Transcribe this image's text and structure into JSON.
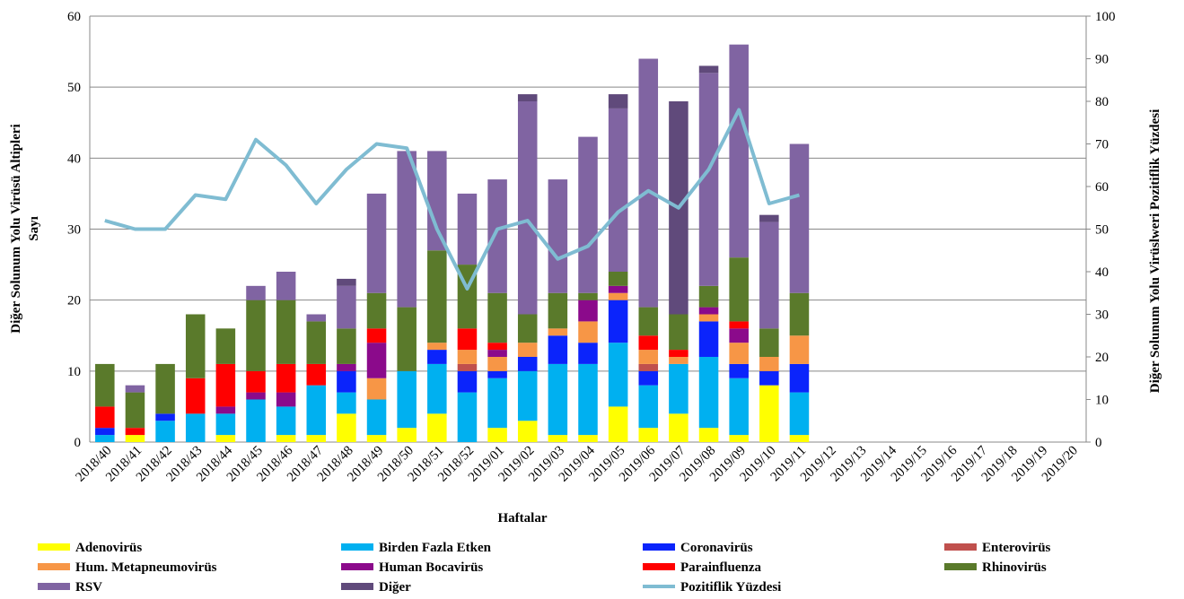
{
  "chart_data": {
    "type": "bar",
    "stacked": true,
    "y_label": [
      "Diğer Solunum Yolu Virüsü Altipleri",
      "Sayı"
    ],
    "y2_label": "Diğer Solunum Yolu Virüslweri Pozitiflik Yüzdesi",
    "x_label": "Haftalar",
    "categories": [
      "2018/40",
      "2018/41",
      "2018/42",
      "2018/43",
      "2018/44",
      "2018/45",
      "2018/46",
      "2018/47",
      "2018/48",
      "2018/49",
      "2018/50",
      "2018/51",
      "2018/52",
      "2019/01",
      "2019/02",
      "2019/03",
      "2019/04",
      "2019/05",
      "2019/06",
      "2019/07",
      "2019/08",
      "2019/09",
      "2019/10",
      "2019/11",
      "2019/12",
      "2019/13",
      "2019/14",
      "2019/15",
      "2019/16",
      "2019/17",
      "2019/18",
      "2019/19",
      "2019/20"
    ],
    "ylim": [
      0,
      60
    ],
    "yticks": [
      0,
      10,
      20,
      30,
      40,
      50,
      60
    ],
    "y2lim": [
      0,
      100
    ],
    "y2ticks": [
      0,
      10,
      20,
      30,
      40,
      50,
      60,
      70,
      80,
      90,
      100
    ],
    "grid": true,
    "series": [
      {
        "name": "Adenovirüs",
        "color": "#ffff00",
        "values": [
          0,
          1,
          0,
          0,
          1,
          0,
          1,
          1,
          4,
          1,
          2,
          4,
          0,
          2,
          3,
          1,
          1,
          5,
          2,
          4,
          2,
          1,
          8,
          1,
          null,
          null,
          null,
          null,
          null,
          null,
          null,
          null,
          null
        ]
      },
      {
        "name": "Birden Fazla Etken",
        "color": "#00b0f0",
        "values": [
          1,
          0,
          3,
          4,
          3,
          6,
          4,
          7,
          3,
          5,
          8,
          7,
          7,
          7,
          7,
          10,
          10,
          9,
          6,
          7,
          10,
          8,
          0,
          6,
          null,
          null,
          null,
          null,
          null,
          null,
          null,
          null,
          null
        ]
      },
      {
        "name": "Coronavirüs",
        "color": "#0b24fb",
        "values": [
          1,
          0,
          1,
          0,
          0,
          0,
          0,
          0,
          3,
          0,
          0,
          2,
          3,
          1,
          2,
          4,
          3,
          6,
          2,
          0,
          5,
          2,
          2,
          4,
          null,
          null,
          null,
          null,
          null,
          null,
          null,
          null,
          null
        ]
      },
      {
        "name": "Enterovirüs",
        "color": "#c0504d",
        "values": [
          0,
          0,
          0,
          0,
          0,
          0,
          0,
          0,
          0,
          0,
          0,
          0,
          1,
          0,
          0,
          0,
          0,
          0,
          1,
          0,
          0,
          0,
          0,
          0,
          null,
          null,
          null,
          null,
          null,
          null,
          null,
          null,
          null
        ]
      },
      {
        "name": "Hum. Metapneumovirüs",
        "color": "#f79646",
        "values": [
          0,
          0,
          0,
          0,
          0,
          0,
          0,
          0,
          0,
          3,
          0,
          1,
          2,
          2,
          2,
          1,
          3,
          1,
          2,
          1,
          1,
          3,
          2,
          4,
          null,
          null,
          null,
          null,
          null,
          null,
          null,
          null,
          null
        ]
      },
      {
        "name": "Human Bocavirüs",
        "color": "#8b0a8b",
        "values": [
          0,
          0,
          0,
          0,
          1,
          1,
          2,
          0,
          1,
          5,
          0,
          0,
          0,
          1,
          0,
          0,
          3,
          1,
          0,
          0,
          1,
          2,
          0,
          0,
          null,
          null,
          null,
          null,
          null,
          null,
          null,
          null,
          null
        ]
      },
      {
        "name": "Parainfluenza",
        "color": "#ff0000",
        "values": [
          3,
          1,
          0,
          5,
          6,
          3,
          4,
          3,
          0,
          2,
          0,
          0,
          3,
          1,
          0,
          0,
          0,
          0,
          2,
          1,
          0,
          1,
          0,
          0,
          null,
          null,
          null,
          null,
          null,
          null,
          null,
          null,
          null
        ]
      },
      {
        "name": "Rhinovirüs",
        "color": "#5a7a2b",
        "values": [
          6,
          5,
          7,
          9,
          5,
          10,
          9,
          6,
          5,
          5,
          9,
          13,
          9,
          7,
          4,
          5,
          1,
          2,
          4,
          5,
          3,
          9,
          4,
          6,
          null,
          null,
          null,
          null,
          null,
          null,
          null,
          null,
          null
        ]
      },
      {
        "name": "RSV",
        "color": "#8064a2",
        "values": [
          0,
          1,
          0,
          0,
          0,
          2,
          4,
          1,
          6,
          14,
          22,
          14,
          10,
          16,
          30,
          16,
          22,
          23,
          35,
          0,
          30,
          30,
          15,
          21,
          null,
          null,
          null,
          null,
          null,
          null,
          null,
          null,
          null
        ]
      },
      {
        "name": "Diğer",
        "color": "#604a7b",
        "values": [
          0,
          0,
          0,
          0,
          0,
          0,
          0,
          0,
          1,
          0,
          0,
          0,
          0,
          0,
          1,
          0,
          0,
          2,
          0,
          30,
          1,
          0,
          1,
          0,
          null,
          null,
          null,
          null,
          null,
          null,
          null,
          null,
          null
        ]
      },
      {
        "name": "Pozitiflik Yüzdesi",
        "color": "#7fbcd2",
        "type": "line",
        "axis": "y2",
        "values": [
          52,
          50,
          50,
          58,
          57,
          71,
          65,
          56,
          64,
          70,
          69,
          50,
          36,
          50,
          52,
          43,
          46,
          54,
          59,
          55,
          64,
          78,
          56,
          58,
          null,
          null,
          null,
          null,
          null,
          null,
          null,
          null,
          null
        ]
      }
    ]
  }
}
